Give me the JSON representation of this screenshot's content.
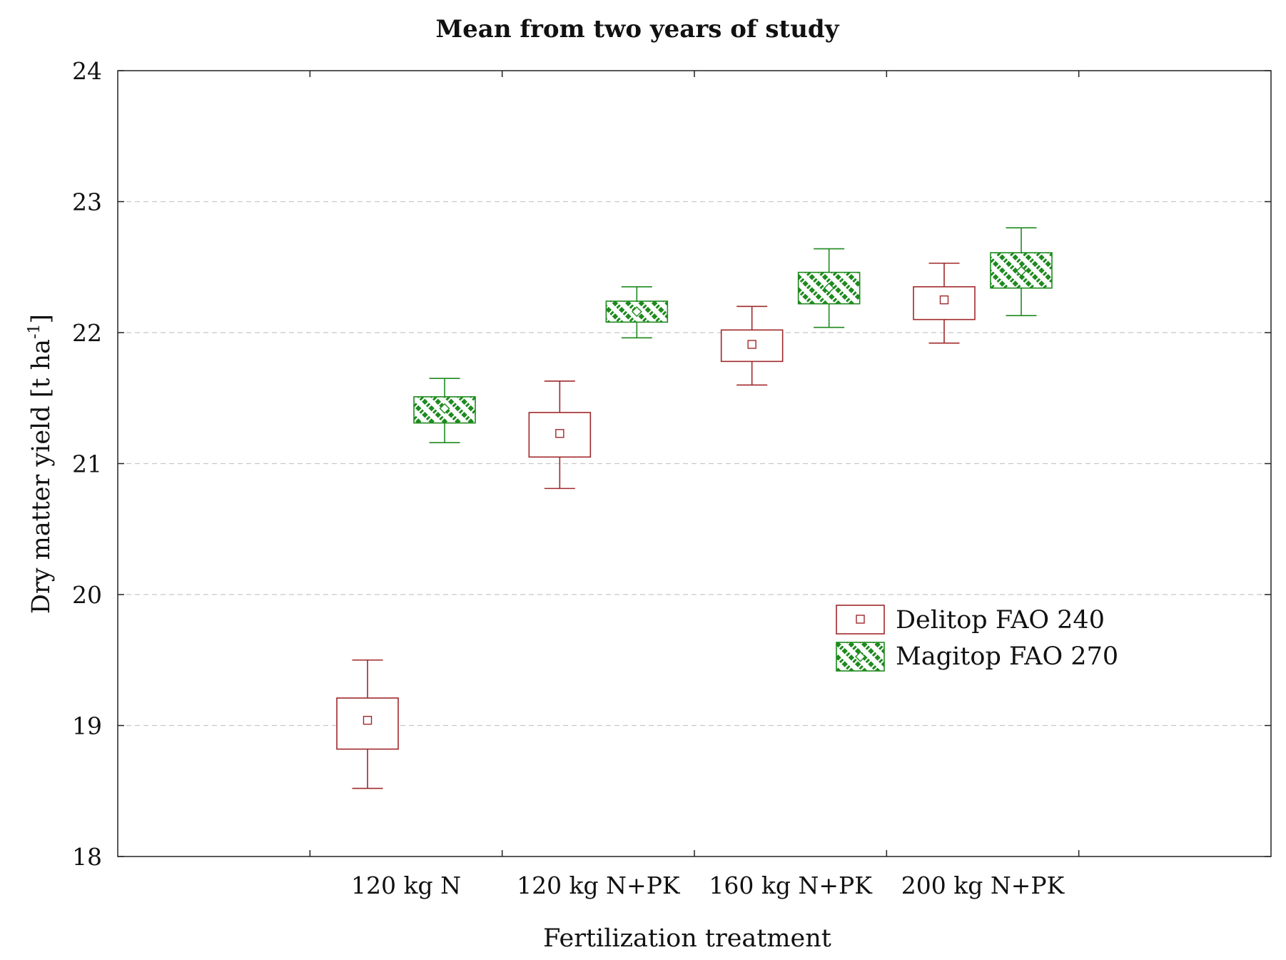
{
  "chart_data": {
    "type": "box",
    "title": "Mean from two years of study",
    "xlabel": "Fertilization treatment",
    "ylabel_main": "Dry matter yield [t ha",
    "ylabel_superscript": "-1",
    "ylabel_close": "]",
    "ylim": [
      18,
      24
    ],
    "yticks": [
      18,
      19,
      20,
      21,
      22,
      23,
      24
    ],
    "categories": [
      "120 kg N",
      "120 kg N+PK",
      "160 kg N+PK",
      "200 kg N+PK"
    ],
    "grid": true,
    "legend_position": "right-middle",
    "series": [
      {
        "name": "Delitop FAO 240",
        "color": "#a0282a",
        "pattern": "open",
        "marker": "square",
        "mean": [
          19.04,
          21.23,
          21.91,
          22.25
        ],
        "box_low": [
          18.82,
          21.05,
          21.78,
          22.1
        ],
        "box_high": [
          19.21,
          21.39,
          22.02,
          22.35
        ],
        "whisker_low": [
          18.52,
          20.81,
          21.6,
          21.92
        ],
        "whisker_high": [
          19.5,
          21.63,
          22.2,
          22.53
        ]
      },
      {
        "name": "Magitop FAO 270",
        "color": "#1e8a1e",
        "pattern": "hatched",
        "marker": "diamond",
        "mean": [
          21.42,
          22.16,
          22.34,
          22.47
        ],
        "box_low": [
          21.31,
          22.08,
          22.22,
          22.34
        ],
        "box_high": [
          21.51,
          22.24,
          22.46,
          22.61
        ],
        "whisker_low": [
          21.16,
          21.96,
          22.04,
          22.13
        ],
        "whisker_high": [
          21.65,
          22.35,
          22.64,
          22.8
        ]
      }
    ]
  }
}
